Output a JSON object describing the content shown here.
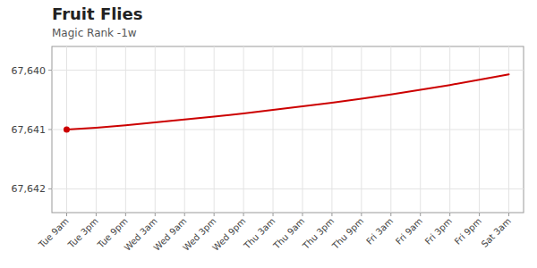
{
  "chart_data": {
    "type": "line",
    "title": "Fruit Flies",
    "subtitle": "Magic Rank -1w",
    "categories": [
      "Tue 9am",
      "Tue 3pm",
      "Tue 9pm",
      "Wed 3am",
      "Wed 9am",
      "Wed 3pm",
      "Wed 9pm",
      "Thu 3am",
      "Thu 9am",
      "Thu 3pm",
      "Thu 9pm",
      "Fri 3am",
      "Fri 9am",
      "Fri 3pm",
      "Fri 9pm",
      "Sat 3am"
    ],
    "values": [
      67641.0,
      67640.97,
      67640.93,
      67640.88,
      67640.83,
      67640.78,
      67640.73,
      67640.67,
      67640.61,
      67640.55,
      67640.48,
      67640.41,
      67640.33,
      67640.25,
      67640.16,
      67640.07
    ],
    "color": "#cc0000",
    "ylim": [
      67642.4,
      67639.6
    ],
    "yticks": [
      {
        "value": 67640,
        "label": "67,640"
      },
      {
        "value": 67641,
        "label": "67,641"
      },
      {
        "value": 67642,
        "label": "67,642"
      }
    ],
    "grid": true
  }
}
